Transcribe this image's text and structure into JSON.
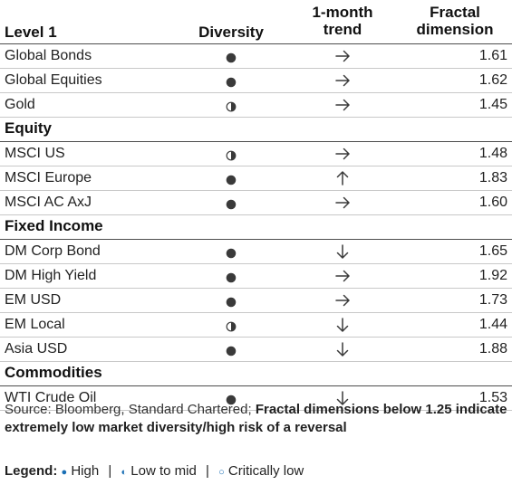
{
  "table": {
    "headers": {
      "level": "Level 1",
      "diversity": "Diversity",
      "trend_line1": "1-month",
      "trend_line2": "trend",
      "fractal_line1": "Fractal",
      "fractal_line2": "dimension"
    },
    "rows": [
      {
        "kind": "item",
        "name": "Global Bonds",
        "diversity": "high",
        "trend": "flat",
        "value": "1.61"
      },
      {
        "kind": "item",
        "name": "Global Equities",
        "diversity": "high",
        "trend": "flat",
        "value": "1.62"
      },
      {
        "kind": "item",
        "name": "Gold",
        "diversity": "low-to-mid",
        "trend": "flat",
        "value": "1.45"
      },
      {
        "kind": "section",
        "name": "Equity"
      },
      {
        "kind": "item",
        "name": "MSCI US",
        "diversity": "low-to-mid",
        "trend": "flat",
        "value": "1.48"
      },
      {
        "kind": "item",
        "name": "MSCI Europe",
        "diversity": "high",
        "trend": "up",
        "value": "1.83"
      },
      {
        "kind": "item",
        "name": "MSCI AC AxJ",
        "diversity": "high",
        "trend": "flat",
        "value": "1.60"
      },
      {
        "kind": "section",
        "name": "Fixed Income"
      },
      {
        "kind": "item",
        "name": "DM Corp Bond",
        "diversity": "high",
        "trend": "down",
        "value": "1.65"
      },
      {
        "kind": "item",
        "name": "DM High Yield",
        "diversity": "high",
        "trend": "flat",
        "value": "1.92"
      },
      {
        "kind": "item",
        "name": "EM USD",
        "diversity": "high",
        "trend": "flat",
        "value": "1.73"
      },
      {
        "kind": "item",
        "name": "EM Local",
        "diversity": "low-to-mid",
        "trend": "down",
        "value": "1.44"
      },
      {
        "kind": "item",
        "name": "Asia USD",
        "diversity": "high",
        "trend": "down",
        "value": "1.88"
      },
      {
        "kind": "section",
        "name": "Commodities"
      },
      {
        "kind": "item",
        "name": "WTI Crude Oil",
        "diversity": "high",
        "trend": "down",
        "value": "1.53"
      }
    ]
  },
  "source": {
    "plain": "Source: Bloomberg, Standard Chartered; ",
    "bold": "Fractal dimensions below 1.25 indicate extremely low market diversity/high risk of a reversal"
  },
  "legend": {
    "title": "Legend:",
    "high_symbol": "●",
    "high_label": "High",
    "mid_symbol": "◐",
    "mid_label": "Low to mid",
    "low_symbol": "○",
    "low_label": "Critically low",
    "separator": "|"
  },
  "colors": {
    "dot": "#3a3a3a",
    "arrow": "#3a3a3a",
    "legend_symbol": "#1a6fb5"
  }
}
